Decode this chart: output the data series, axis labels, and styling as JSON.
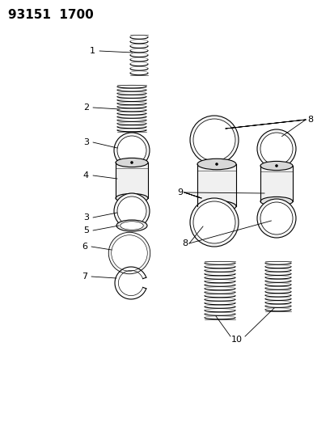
{
  "title_text": "93151  1700",
  "bg_color": "#ffffff",
  "line_color": "#000000",
  "title_fontsize": 11,
  "label_fontsize": 8,
  "fig_width": 4.14,
  "fig_height": 5.33,
  "dpi": 100
}
